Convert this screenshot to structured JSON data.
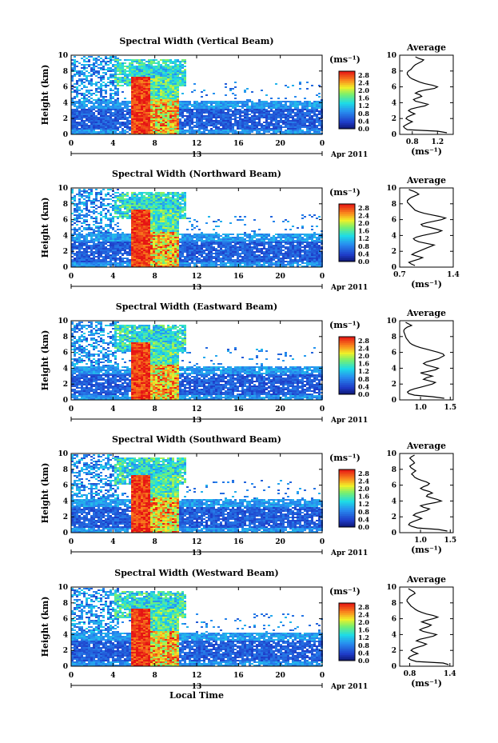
{
  "chart_data": [
    {
      "type": "heatmap",
      "title": "Spectral Width (Vertical Beam)",
      "ylabel": "Height (km)",
      "xlabel": "",
      "x_ticks": [
        "0",
        "4",
        "8",
        "12",
        "16",
        "20",
        "0"
      ],
      "y_ticks": [
        "0",
        "2",
        "4",
        "6",
        "8",
        "10"
      ],
      "xlim": [
        0,
        24
      ],
      "ylim": [
        0,
        10
      ],
      "date_day": "13",
      "date_month_year": "Apr 2011",
      "colorbar": {
        "unit": "(ms⁻¹)",
        "ticks": [
          "0.0",
          "0.4",
          "0.8",
          "1.2",
          "1.6",
          "2.0",
          "2.4",
          "2.8"
        ],
        "range": [
          0,
          3.0
        ]
      },
      "average": {
        "title": "Average",
        "xlabel": "(ms⁻¹)",
        "x_ticks": [
          "0.8",
          "1.2"
        ],
        "xlim": [
          0.6,
          1.45
        ],
        "y": [
          0.2,
          0.4,
          0.6,
          0.8,
          1.0,
          1.2,
          1.4,
          1.6,
          1.8,
          2.0,
          2.2,
          2.4,
          2.6,
          2.8,
          3.0,
          3.2,
          3.4,
          3.6,
          3.8,
          4.0,
          4.2,
          4.4,
          4.6,
          4.8,
          5.0,
          5.2,
          5.4,
          5.6,
          5.8,
          6.0,
          6.2,
          6.4,
          6.6,
          6.8,
          7.0,
          7.2,
          7.4,
          7.6,
          7.8,
          8.0,
          8.2,
          8.4,
          8.6,
          8.8,
          9.0,
          9.2,
          9.4,
          9.6,
          9.8
        ],
        "x": [
          1.35,
          1.2,
          0.72,
          0.68,
          0.66,
          0.7,
          0.75,
          0.8,
          0.74,
          0.7,
          0.72,
          0.78,
          0.84,
          0.78,
          0.74,
          0.78,
          0.88,
          1.0,
          1.05,
          0.95,
          0.85,
          0.82,
          0.88,
          0.95,
          0.92,
          0.85,
          0.9,
          1.0,
          1.15,
          1.2,
          1.12,
          1.0,
          0.92,
          0.86,
          0.8,
          0.76,
          0.74,
          0.72,
          0.72,
          0.74,
          0.78,
          0.8,
          0.82,
          0.85,
          0.9,
          0.95,
          0.98,
          0.9,
          0.85
        ]
      }
    },
    {
      "type": "heatmap",
      "title": "Spectral Width (Northward Beam)",
      "ylabel": "Height (km)",
      "xlabel": "",
      "x_ticks": [
        "0",
        "4",
        "8",
        "12",
        "16",
        "20",
        "0"
      ],
      "y_ticks": [
        "0",
        "2",
        "4",
        "6",
        "8",
        "10"
      ],
      "xlim": [
        0,
        24
      ],
      "ylim": [
        0,
        10
      ],
      "date_day": "13",
      "date_month_year": "Apr 2011",
      "colorbar": {
        "unit": "(ms⁻¹)",
        "ticks": [
          "0.0",
          "0.4",
          "0.8",
          "1.2",
          "1.6",
          "2.0",
          "2.4",
          "2.8"
        ],
        "range": [
          0,
          3.0
        ]
      },
      "average": {
        "title": "Average",
        "xlabel": "(ms⁻¹)",
        "x_ticks": [
          "0.7",
          "1.4"
        ],
        "xlim": [
          0.7,
          1.4
        ],
        "y": [
          0.2,
          0.4,
          0.6,
          0.8,
          1.0,
          1.2,
          1.4,
          1.6,
          1.8,
          2.0,
          2.2,
          2.4,
          2.6,
          2.8,
          3.0,
          3.2,
          3.4,
          3.6,
          3.8,
          4.0,
          4.2,
          4.4,
          4.6,
          4.8,
          5.0,
          5.2,
          5.4,
          5.6,
          5.8,
          6.0,
          6.2,
          6.4,
          6.6,
          6.8,
          7.0,
          7.2,
          7.4,
          7.6,
          7.8,
          8.0,
          8.2,
          8.4,
          8.6,
          8.8,
          9.0,
          9.2,
          9.4,
          9.6,
          9.8
        ],
        "x": [
          0.9,
          0.85,
          0.82,
          0.88,
          0.95,
          1.0,
          0.92,
          0.86,
          0.9,
          0.95,
          1.0,
          1.05,
          1.1,
          1.15,
          1.05,
          0.95,
          0.9,
          0.88,
          0.92,
          1.0,
          1.1,
          1.2,
          1.25,
          1.18,
          1.1,
          1.0,
          0.98,
          1.05,
          1.15,
          1.25,
          1.3,
          1.22,
          1.12,
          1.02,
          0.95,
          0.9,
          0.88,
          0.86,
          0.84,
          0.82,
          0.8,
          0.8,
          0.82,
          0.85,
          0.9,
          0.95,
          0.92,
          0.88,
          0.82
        ]
      }
    },
    {
      "type": "heatmap",
      "title": "Spectral Width (Eastward Beam)",
      "ylabel": "Height (km)",
      "xlabel": "",
      "x_ticks": [
        "0",
        "4",
        "8",
        "12",
        "16",
        "20",
        "0"
      ],
      "y_ticks": [
        "0",
        "2",
        "4",
        "6",
        "8",
        "10"
      ],
      "xlim": [
        0,
        24
      ],
      "ylim": [
        0,
        10
      ],
      "date_day": "13",
      "date_month_year": "Apr 2011",
      "colorbar": {
        "unit": "(ms⁻¹)",
        "ticks": [
          "0.0",
          "0.4",
          "0.8",
          "1.2",
          "1.6",
          "2.0",
          "2.4",
          "2.8"
        ],
        "range": [
          0,
          3.0
        ]
      },
      "average": {
        "title": "Average",
        "xlabel": "",
        "x_ticks": [
          "1.0",
          "1.5"
        ],
        "xlim": [
          0.65,
          1.55
        ],
        "y": [
          0.2,
          0.4,
          0.6,
          0.8,
          1.0,
          1.2,
          1.4,
          1.6,
          1.8,
          2.0,
          2.2,
          2.4,
          2.6,
          2.8,
          3.0,
          3.2,
          3.4,
          3.6,
          3.8,
          4.0,
          4.2,
          4.4,
          4.6,
          4.8,
          5.0,
          5.2,
          5.4,
          5.6,
          5.8,
          6.0,
          6.2,
          6.4,
          6.6,
          6.8,
          7.0,
          7.2,
          7.4,
          7.6,
          7.8,
          8.0,
          8.2,
          8.4,
          8.6,
          8.8,
          9.0,
          9.2,
          9.4,
          9.6,
          9.8
        ],
        "x": [
          1.4,
          1.2,
          0.9,
          0.8,
          0.78,
          0.82,
          0.9,
          1.0,
          1.1,
          1.2,
          1.25,
          1.15,
          1.05,
          1.1,
          1.2,
          1.1,
          1.0,
          1.12,
          1.25,
          1.3,
          1.2,
          1.1,
          1.05,
          1.1,
          1.2,
          1.3,
          1.35,
          1.4,
          1.38,
          1.3,
          1.2,
          1.1,
          1.0,
          0.92,
          0.86,
          0.82,
          0.8,
          0.78,
          0.76,
          0.75,
          0.74,
          0.73,
          0.72,
          0.72,
          0.74,
          0.78,
          0.85,
          0.8,
          0.75
        ]
      }
    },
    {
      "type": "heatmap",
      "title": "Spectral Width (Southward Beam)",
      "ylabel": "Height (km)",
      "xlabel": "",
      "x_ticks": [
        "0",
        "4",
        "8",
        "12",
        "16",
        "20",
        "0"
      ],
      "y_ticks": [
        "0",
        "2",
        "4",
        "6",
        "8",
        "10"
      ],
      "xlim": [
        0,
        24
      ],
      "ylim": [
        0,
        10
      ],
      "date_day": "13",
      "date_month_year": "Apr 2011",
      "colorbar": {
        "unit": "(ms⁻¹)",
        "ticks": [
          "0.0",
          "0.4",
          "0.8",
          "1.2",
          "1.6",
          "2.0",
          "2.4",
          "2.8"
        ],
        "range": [
          0,
          3.0
        ]
      },
      "average": {
        "title": "Average",
        "xlabel": "(ms⁻¹)",
        "x_ticks": [
          "1.0",
          "1.5"
        ],
        "xlim": [
          0.65,
          1.55
        ],
        "y": [
          0.2,
          0.4,
          0.6,
          0.8,
          1.0,
          1.2,
          1.4,
          1.6,
          1.8,
          2.0,
          2.2,
          2.4,
          2.6,
          2.8,
          3.0,
          3.2,
          3.4,
          3.6,
          3.8,
          4.0,
          4.2,
          4.4,
          4.6,
          4.8,
          5.0,
          5.2,
          5.4,
          5.6,
          5.8,
          6.0,
          6.2,
          6.4,
          6.6,
          6.8,
          7.0,
          7.2,
          7.4,
          7.6,
          7.8,
          8.0,
          8.2,
          8.4,
          8.6,
          8.8,
          9.0,
          9.2,
          9.4,
          9.6,
          9.8
        ],
        "x": [
          1.45,
          1.3,
          0.95,
          0.85,
          0.8,
          0.82,
          0.88,
          0.95,
          1.02,
          0.95,
          0.88,
          0.92,
          1.0,
          1.1,
          1.15,
          1.05,
          1.0,
          1.1,
          1.25,
          1.35,
          1.28,
          1.18,
          1.1,
          1.12,
          1.2,
          1.15,
          1.05,
          1.0,
          1.05,
          1.12,
          1.15,
          1.1,
          1.02,
          0.95,
          0.9,
          0.88,
          0.85,
          0.88,
          0.92,
          0.88,
          0.84,
          0.82,
          0.86,
          0.9,
          0.88,
          0.85,
          0.82,
          0.85,
          0.9
        ]
      }
    },
    {
      "type": "heatmap",
      "title": "Spectral Width (Westward Beam)",
      "ylabel": "Height (km)",
      "xlabel": "Local Time",
      "x_ticks": [
        "0",
        "4",
        "8",
        "12",
        "16",
        "20",
        "0"
      ],
      "y_ticks": [
        "0",
        "2",
        "4",
        "6",
        "8",
        "10"
      ],
      "xlim": [
        0,
        24
      ],
      "ylim": [
        0,
        10
      ],
      "date_day": "13",
      "date_month_year": "Apr 2011",
      "colorbar": {
        "unit": "(ms⁻¹)",
        "ticks": [
          "0.0",
          "0.4",
          "0.8",
          "1.2",
          "1.6",
          "2.0",
          "2.4",
          "2.8"
        ],
        "range": [
          0,
          3.0
        ]
      },
      "average": {
        "title": "Average",
        "xlabel": "(ms⁻¹)",
        "x_ticks": [
          "0.8",
          "1.4"
        ],
        "xlim": [
          0.65,
          1.45
        ],
        "y": [
          0.2,
          0.4,
          0.6,
          0.8,
          1.0,
          1.2,
          1.4,
          1.6,
          1.8,
          2.0,
          2.2,
          2.4,
          2.6,
          2.8,
          3.0,
          3.2,
          3.4,
          3.6,
          3.8,
          4.0,
          4.2,
          4.4,
          4.6,
          4.8,
          5.0,
          5.2,
          5.4,
          5.6,
          5.8,
          6.0,
          6.2,
          6.4,
          6.6,
          6.8,
          7.0,
          7.2,
          7.4,
          7.6,
          7.8,
          8.0,
          8.2,
          8.4,
          8.6,
          8.8,
          9.0,
          9.2,
          9.4,
          9.6,
          9.8
        ],
        "x": [
          1.38,
          1.3,
          0.9,
          0.82,
          0.78,
          0.8,
          0.85,
          0.92,
          0.86,
          0.82,
          0.85,
          0.92,
          1.0,
          1.05,
          0.98,
          0.9,
          0.95,
          1.05,
          1.15,
          1.2,
          1.1,
          1.0,
          0.95,
          1.0,
          1.08,
          1.12,
          1.05,
          0.98,
          1.05,
          1.15,
          1.22,
          1.15,
          1.05,
          0.98,
          0.92,
          0.88,
          0.85,
          0.82,
          0.8,
          0.78,
          0.76,
          0.76,
          0.78,
          0.8,
          0.84,
          0.88,
          0.86,
          0.82,
          0.78
        ]
      }
    }
  ]
}
